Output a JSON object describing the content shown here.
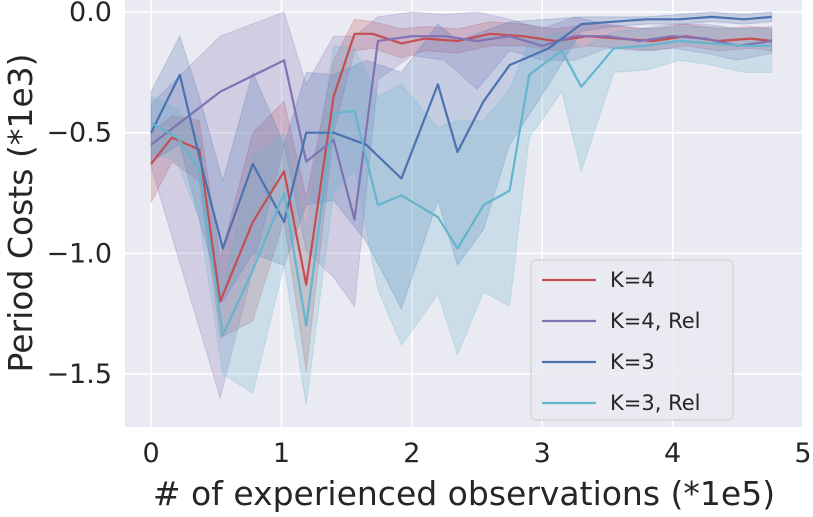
{
  "chart_data": {
    "type": "line",
    "title": "",
    "xlabel": "# of experienced observations (*1e5)",
    "ylabel": "Period Costs (*1e3)",
    "xlim": [
      -0.2,
      5.0
    ],
    "ylim": [
      -1.72,
      0.05
    ],
    "xticks": [
      0,
      1,
      2,
      3,
      4,
      5
    ],
    "xtick_labels": [
      "0",
      "1",
      "2",
      "3",
      "4",
      "5"
    ],
    "yticks": [
      -1.5,
      -1.0,
      -0.5,
      0.0
    ],
    "ytick_labels": [
      "−1.5",
      "−1.0",
      "−0.5",
      "0.0"
    ],
    "grid": true,
    "legend_position": "lower-right",
    "series": [
      {
        "name": "K=4",
        "color": "#c44e52",
        "x": [
          0,
          0.16,
          0.37,
          0.53,
          0.78,
          1.02,
          1.19,
          1.4,
          1.56,
          1.7,
          1.92,
          2.1,
          2.35,
          2.6,
          2.85,
          3.1,
          3.35,
          3.6,
          3.85,
          4.1,
          4.35,
          4.6,
          4.76
        ],
        "values": [
          -0.63,
          -0.52,
          -0.57,
          -1.2,
          -0.87,
          -0.66,
          -1.13,
          -0.35,
          -0.09,
          -0.09,
          -0.13,
          -0.11,
          -0.12,
          -0.09,
          -0.1,
          -0.12,
          -0.1,
          -0.11,
          -0.12,
          -0.1,
          -0.12,
          -0.11,
          -0.12
        ],
        "lower": [
          -0.79,
          -0.62,
          -0.7,
          -1.35,
          -1.28,
          -0.86,
          -1.49,
          -0.5,
          -0.16,
          -0.15,
          -0.19,
          -0.16,
          -0.17,
          -0.14,
          -0.14,
          -0.16,
          -0.14,
          -0.15,
          -0.16,
          -0.14,
          -0.16,
          -0.15,
          -0.16
        ],
        "upper": [
          -0.5,
          -0.43,
          -0.45,
          -1.02,
          -0.5,
          -0.37,
          -0.77,
          -0.2,
          -0.03,
          -0.04,
          -0.07,
          -0.06,
          -0.07,
          -0.04,
          -0.05,
          -0.07,
          -0.05,
          -0.06,
          -0.07,
          -0.05,
          -0.07,
          -0.06,
          -0.07
        ]
      },
      {
        "name": "K=4, Rel",
        "color": "#8172b2",
        "x": [
          0,
          0.53,
          1.02,
          1.19,
          1.4,
          1.56,
          1.74,
          2.0,
          2.25,
          2.5,
          2.75,
          3.0,
          3.25,
          3.5,
          3.75,
          4.0,
          4.25,
          4.5,
          4.76
        ],
        "values": [
          -0.55,
          -0.33,
          -0.2,
          -0.62,
          -0.53,
          -0.86,
          -0.12,
          -0.1,
          -0.1,
          -0.12,
          -0.1,
          -0.14,
          -0.1,
          -0.1,
          -0.12,
          -0.1,
          -0.11,
          -0.14,
          -0.12
        ],
        "lower": [
          -0.64,
          -1.6,
          -0.55,
          -0.99,
          -1.1,
          -1.22,
          -0.28,
          -0.18,
          -0.2,
          -0.32,
          -0.16,
          -0.2,
          -0.2,
          -0.15,
          -0.16,
          -0.15,
          -0.17,
          -0.2,
          -0.17
        ],
        "upper": [
          -0.38,
          -0.1,
          0.0,
          -0.3,
          -0.1,
          -0.1,
          -0.02,
          0.0,
          -0.01,
          0.0,
          -0.03,
          -0.07,
          -0.02,
          -0.05,
          -0.07,
          -0.05,
          -0.05,
          -0.07,
          -0.06
        ]
      },
      {
        "name": "K=3",
        "color": "#4c72b0",
        "x": [
          0,
          0.22,
          0.37,
          0.55,
          0.78,
          1.02,
          1.19,
          1.4,
          1.65,
          1.92,
          2.2,
          2.35,
          2.55,
          2.75,
          3.05,
          3.3,
          3.55,
          3.8,
          4.05,
          4.3,
          4.55,
          4.76
        ],
        "values": [
          -0.5,
          -0.26,
          -0.6,
          -0.98,
          -0.63,
          -0.87,
          -0.5,
          -0.5,
          -0.55,
          -0.69,
          -0.3,
          -0.58,
          -0.37,
          -0.22,
          -0.15,
          -0.05,
          -0.04,
          -0.03,
          -0.03,
          -0.02,
          -0.03,
          -0.02
        ],
        "lower": [
          -0.62,
          -0.55,
          -0.86,
          -1.2,
          -1.0,
          -1.05,
          -0.8,
          -0.78,
          -0.95,
          -1.23,
          -0.78,
          -1.05,
          -0.9,
          -0.55,
          -0.3,
          -0.08,
          -0.06,
          -0.05,
          -0.05,
          -0.04,
          -0.05,
          -0.04
        ],
        "upper": [
          -0.33,
          -0.1,
          -0.35,
          -0.7,
          -0.25,
          -0.55,
          -0.25,
          -0.26,
          -0.2,
          -0.25,
          -0.05,
          -0.12,
          -0.08,
          -0.04,
          -0.03,
          -0.02,
          -0.02,
          -0.02,
          -0.01,
          0.0,
          -0.01,
          0.0
        ]
      },
      {
        "name": "K=3, Rel",
        "color": "#64b5cd",
        "x": [
          0,
          0.2,
          0.37,
          0.55,
          0.78,
          1.02,
          1.19,
          1.4,
          1.56,
          1.74,
          1.92,
          2.2,
          2.35,
          2.55,
          2.75,
          2.9,
          3.15,
          3.3,
          3.55,
          3.8,
          4.05,
          4.3,
          4.55,
          4.76
        ],
        "values": [
          -0.46,
          -0.52,
          -0.65,
          -1.34,
          -1.07,
          -0.75,
          -1.3,
          -0.42,
          -0.41,
          -0.8,
          -0.76,
          -0.85,
          -0.98,
          -0.8,
          -0.74,
          -0.26,
          -0.16,
          -0.31,
          -0.15,
          -0.14,
          -0.12,
          -0.13,
          -0.14,
          -0.14
        ],
        "lower": [
          -0.58,
          -0.62,
          -0.86,
          -1.5,
          -1.58,
          -1.05,
          -1.63,
          -0.75,
          -0.65,
          -1.15,
          -1.38,
          -1.17,
          -1.42,
          -1.16,
          -1.22,
          -0.52,
          -0.33,
          -0.66,
          -0.25,
          -0.24,
          -0.2,
          -0.22,
          -0.25,
          -0.25
        ],
        "upper": [
          -0.35,
          -0.4,
          -0.52,
          -1.15,
          -0.6,
          -0.5,
          -0.9,
          -0.14,
          -0.15,
          -0.35,
          -0.3,
          -0.48,
          -0.45,
          -0.45,
          -0.32,
          -0.12,
          -0.08,
          -0.15,
          -0.08,
          -0.07,
          -0.06,
          -0.06,
          -0.07,
          -0.07
        ]
      }
    ]
  }
}
